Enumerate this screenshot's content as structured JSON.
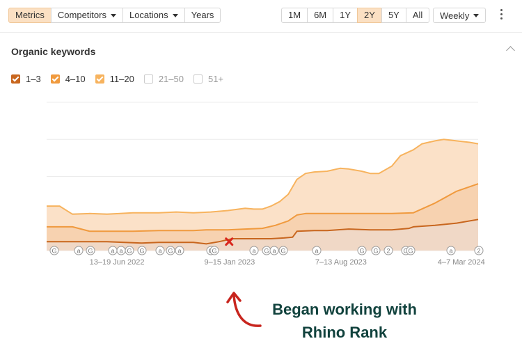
{
  "toolbar": {
    "left_buttons": [
      {
        "label": "Metrics",
        "active": true,
        "dropdown": false
      },
      {
        "label": "Competitors",
        "active": false,
        "dropdown": true
      },
      {
        "label": "Locations",
        "active": false,
        "dropdown": true
      },
      {
        "label": "Years",
        "active": false,
        "dropdown": false
      }
    ],
    "ranges": [
      {
        "label": "1M",
        "active": false
      },
      {
        "label": "6M",
        "active": false
      },
      {
        "label": "1Y",
        "active": false
      },
      {
        "label": "2Y",
        "active": true
      },
      {
        "label": "5Y",
        "active": false
      },
      {
        "label": "All",
        "active": false
      }
    ],
    "granularity": "Weekly"
  },
  "section_title": "Organic keywords",
  "legend": [
    {
      "label": "1–3",
      "checked": true,
      "color": "#c8661e"
    },
    {
      "label": "4–10",
      "checked": true,
      "color": "#f09a3e"
    },
    {
      "label": "11–20",
      "checked": true,
      "color": "#f7b35e"
    },
    {
      "label": "21–50",
      "checked": false,
      "color": "#cccccc"
    },
    {
      "label": "51+",
      "checked": false,
      "color": "#cccccc"
    }
  ],
  "chart_data": {
    "type": "area",
    "stacked": true,
    "grid": true,
    "x_range": [
      0,
      100
    ],
    "y_range": [
      0,
      100
    ],
    "x_tick_labels": [
      {
        "label": "13–19 Jun 2022",
        "at": 16.3
      },
      {
        "label": "9–15 Jan 2023",
        "at": 42.4
      },
      {
        "label": "7–13 Aug 2023",
        "at": 68.2
      },
      {
        "label": "4–7 Mar 2024",
        "at": 96.1
      }
    ],
    "series": [
      {
        "name": "1–3",
        "color": "#c8661e",
        "fill": "#f0d8c6",
        "points": [
          [
            0,
            6
          ],
          [
            6,
            6
          ],
          [
            10,
            6
          ],
          [
            14,
            6
          ],
          [
            18,
            5.5
          ],
          [
            22,
            5
          ],
          [
            26,
            5.5
          ],
          [
            30,
            5.5
          ],
          [
            34,
            5.5
          ],
          [
            37,
            4.5
          ],
          [
            40,
            6
          ],
          [
            43,
            8
          ],
          [
            47,
            8
          ],
          [
            52,
            8
          ],
          [
            55,
            8.5
          ],
          [
            57,
            9
          ],
          [
            58,
            13
          ],
          [
            62,
            13.5
          ],
          [
            65,
            13.5
          ],
          [
            70,
            14.5
          ],
          [
            75,
            14
          ],
          [
            80,
            14
          ],
          [
            84,
            15
          ],
          [
            85,
            16
          ],
          [
            90,
            17
          ],
          [
            95,
            18.5
          ],
          [
            100,
            21
          ]
        ]
      },
      {
        "name": "4–10",
        "color": "#f09a3e",
        "fill": "#f7d2b0",
        "points": [
          [
            0,
            16
          ],
          [
            3,
            16
          ],
          [
            6,
            16
          ],
          [
            10,
            13
          ],
          [
            14,
            13
          ],
          [
            20,
            13
          ],
          [
            26,
            13.5
          ],
          [
            30,
            13.5
          ],
          [
            34,
            13.5
          ],
          [
            37,
            14
          ],
          [
            42,
            14
          ],
          [
            46,
            14.5
          ],
          [
            50,
            15
          ],
          [
            53,
            17
          ],
          [
            56,
            20
          ],
          [
            58,
            24
          ],
          [
            60,
            25
          ],
          [
            65,
            25
          ],
          [
            70,
            25
          ],
          [
            75,
            25
          ],
          [
            80,
            25
          ],
          [
            85,
            25.5
          ],
          [
            90,
            32
          ],
          [
            95,
            40
          ],
          [
            100,
            45
          ]
        ]
      },
      {
        "name": "11–20",
        "color": "#f7b35e",
        "fill": "#fbe1c8",
        "points": [
          [
            0,
            30
          ],
          [
            3,
            30
          ],
          [
            6,
            24.5
          ],
          [
            10,
            25
          ],
          [
            14,
            24.5
          ],
          [
            20,
            25.5
          ],
          [
            26,
            25.5
          ],
          [
            30,
            26
          ],
          [
            34,
            25.5
          ],
          [
            38,
            26
          ],
          [
            42,
            27
          ],
          [
            46,
            28.5
          ],
          [
            48,
            28
          ],
          [
            50,
            28
          ],
          [
            52,
            30
          ],
          [
            54,
            33
          ],
          [
            56,
            38
          ],
          [
            58,
            48
          ],
          [
            60,
            52
          ],
          [
            62,
            53
          ],
          [
            65,
            53.5
          ],
          [
            68,
            55.5
          ],
          [
            70,
            55
          ],
          [
            73,
            53.5
          ],
          [
            75,
            52
          ],
          [
            77,
            52
          ],
          [
            80,
            57
          ],
          [
            82,
            64
          ],
          [
            85,
            68
          ],
          [
            87,
            72
          ],
          [
            90,
            74
          ],
          [
            92,
            75
          ],
          [
            95,
            74
          ],
          [
            98,
            73
          ],
          [
            100,
            72
          ]
        ]
      }
    ],
    "annotation": "Began working with Rhino Rank",
    "marker": {
      "symbol": "x",
      "x": 42.3,
      "y": 6,
      "color": "#d9271e"
    },
    "event_badges": [
      "G",
      "a",
      "G",
      "a",
      "a",
      "G",
      "G",
      "a",
      "G",
      "a",
      "G",
      "G",
      "a",
      "G",
      "a",
      "G",
      "a",
      "G",
      "G",
      "2",
      "G",
      "G",
      "a",
      "2"
    ]
  }
}
